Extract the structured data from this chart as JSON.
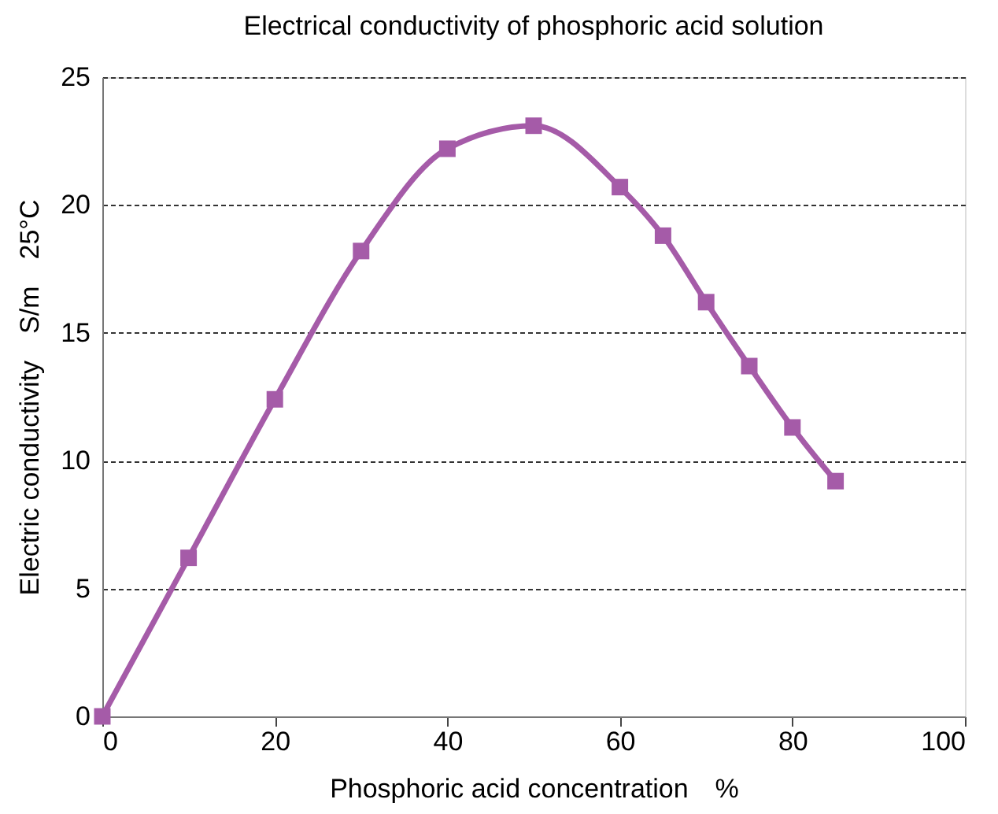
{
  "chart_data": {
    "type": "line",
    "title": "Electrical conductivity of phosphoric acid solution",
    "xlabel": "Phosphoric acid concentration　%",
    "ylabel": "Electric conductivity　S/m　25°C",
    "x": [
      0,
      10,
      20,
      30,
      40,
      50,
      60,
      65,
      70,
      75,
      80,
      85
    ],
    "series": [
      {
        "color": "#a55ba8",
        "values": [
          0,
          6.2,
          12.4,
          18.2,
          22.2,
          23.1,
          20.7,
          18.8,
          16.2,
          13.7,
          11.3,
          9.2
        ]
      }
    ],
    "xlim": [
      0,
      100
    ],
    "xticks": [
      0,
      20,
      40,
      60,
      80,
      100
    ],
    "ylim": [
      0,
      25
    ],
    "yticks": [
      0,
      5,
      10,
      15,
      20,
      25
    ],
    "grid": "y",
    "marker": "square",
    "line_style": "solid"
  }
}
